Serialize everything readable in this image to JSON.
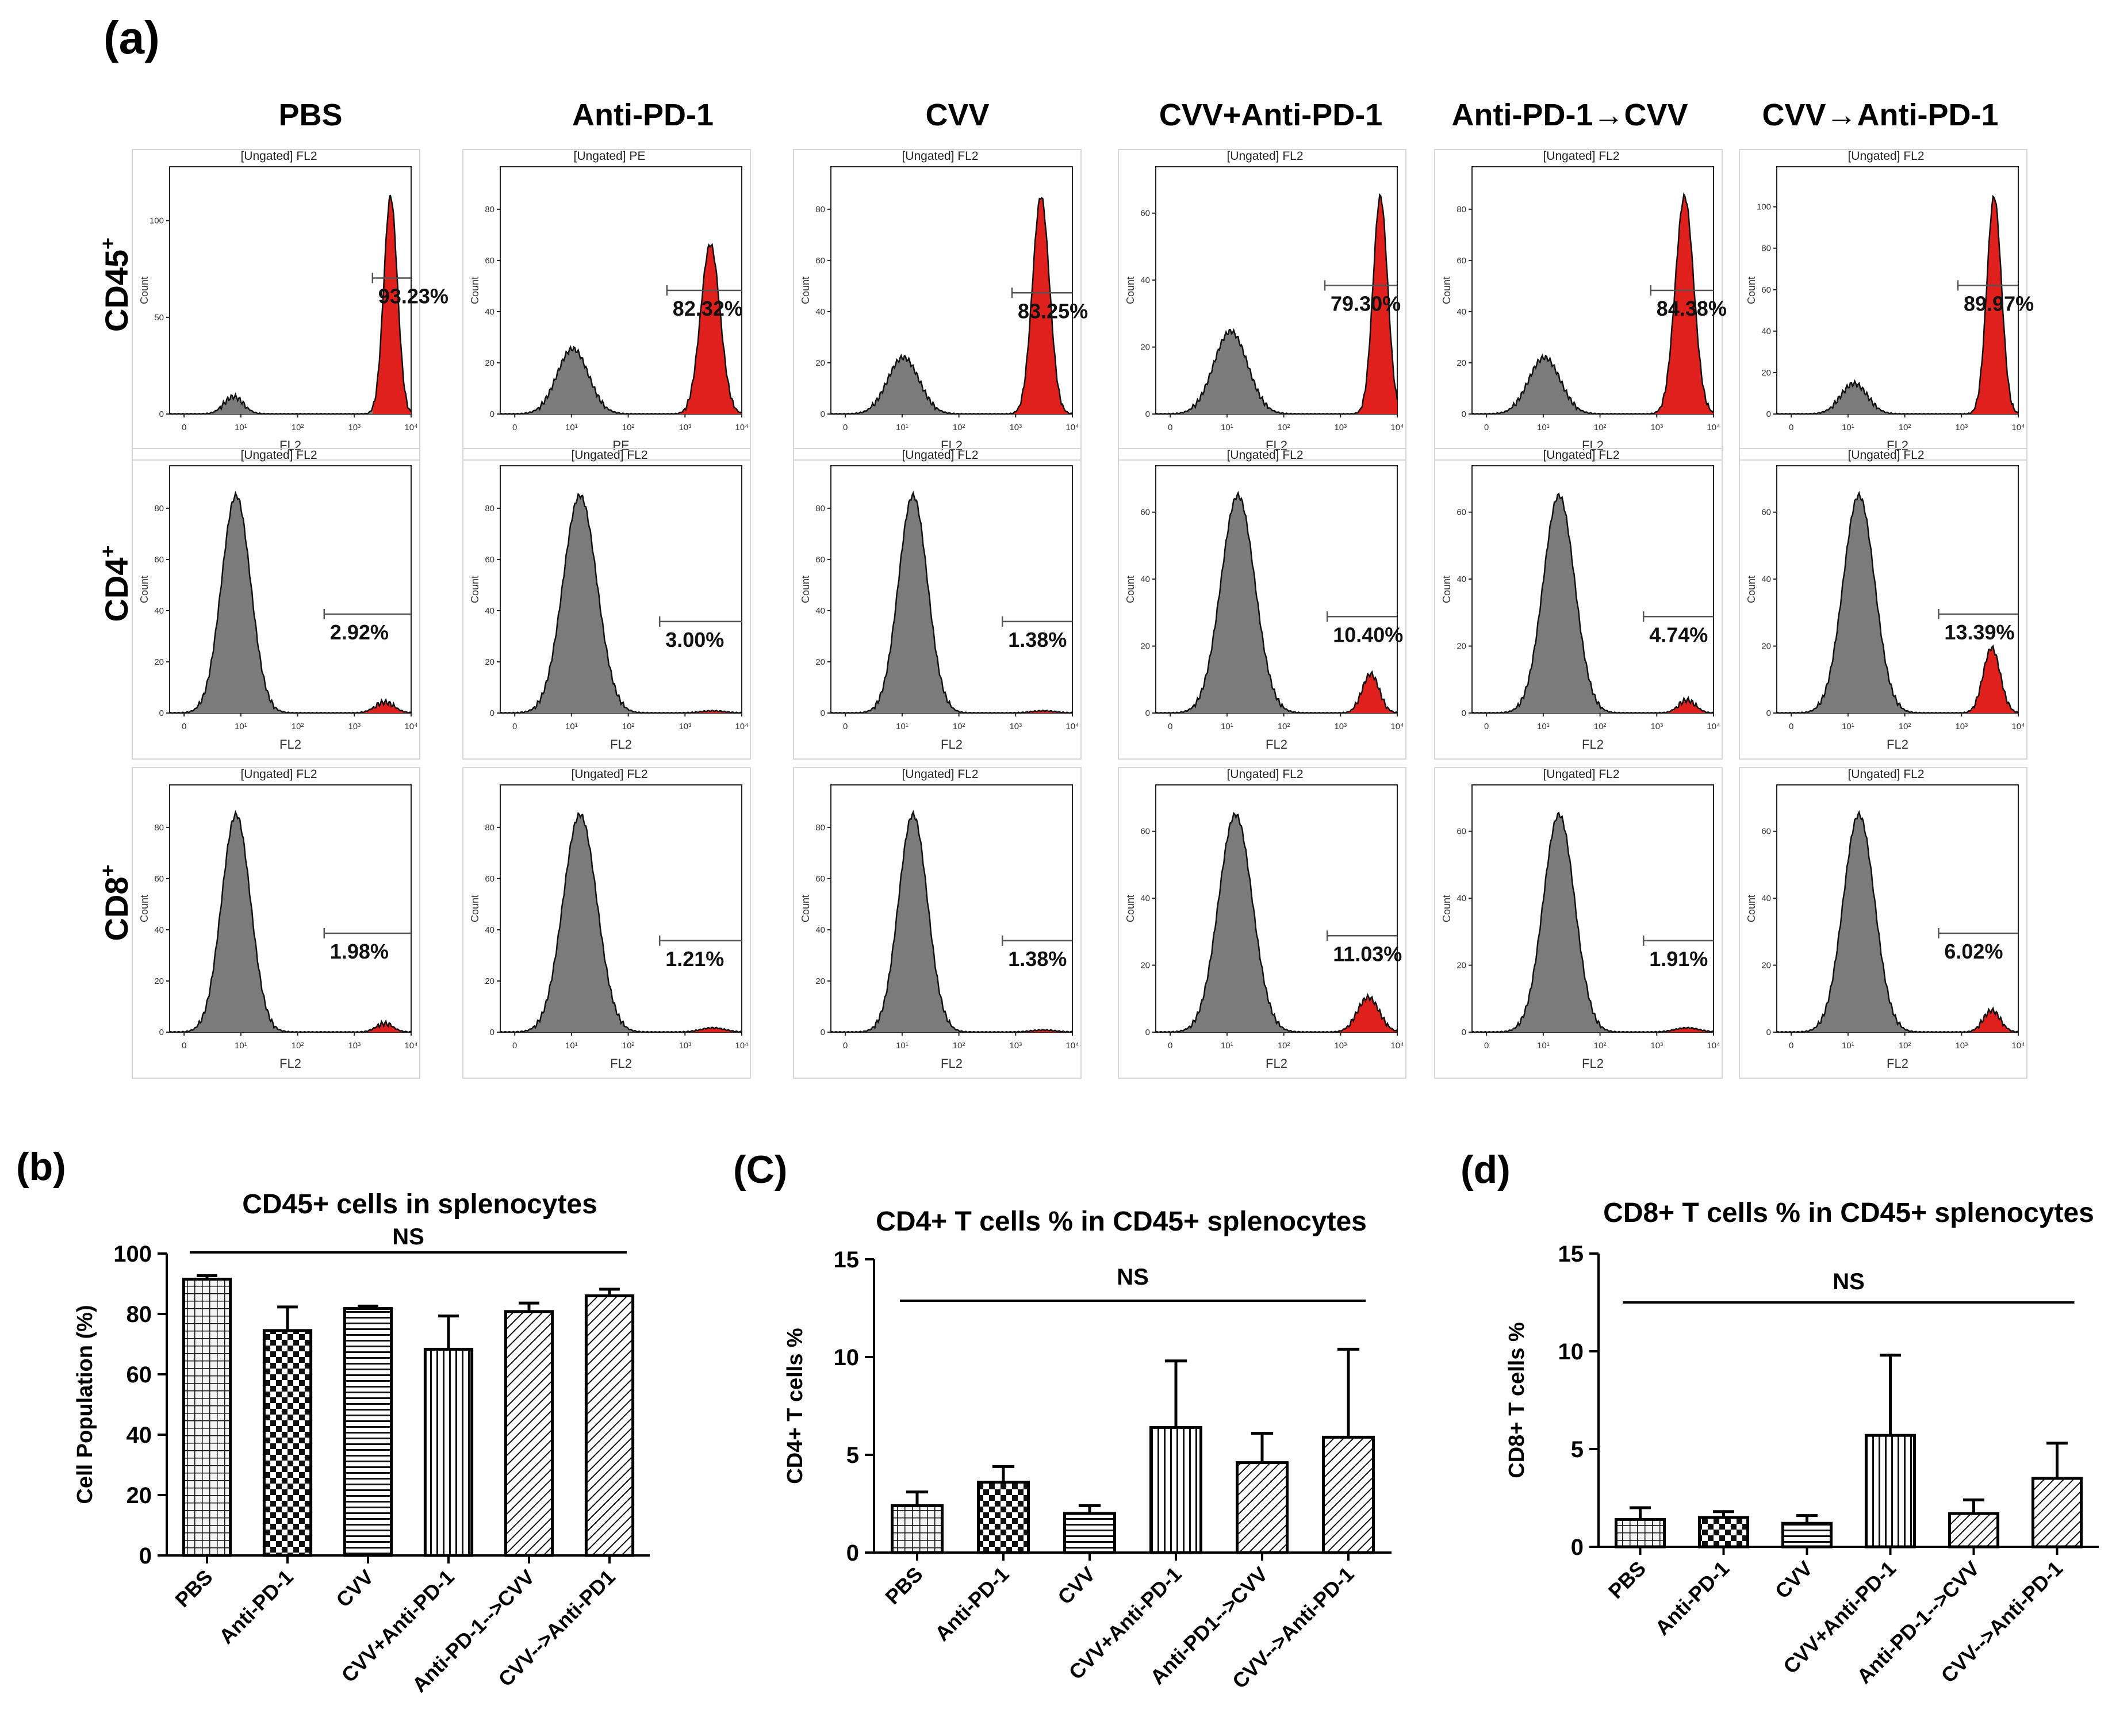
{
  "panel_a": {
    "label": "(a)",
    "columns": [
      "PBS",
      "Anti-PD-1",
      "CVV",
      "CVV+Anti-PD-1",
      "Anti-PD-1→CVV",
      "CVV→Anti-PD-1"
    ],
    "rows": [
      {
        "marker": "CD45",
        "sup": "+"
      },
      {
        "marker": "CD4",
        "sup": "+"
      },
      {
        "marker": "CD8",
        "sup": "+"
      }
    ],
    "histogram_titles": [
      [
        "[Ungated] FL2",
        "[Ungated] PE",
        "[Ungated] FL2",
        "[Ungated] FL2",
        "[Ungated] FL2",
        "[Ungated] FL2"
      ],
      [
        "[Ungated] FL2",
        "[Ungated] FL2",
        "[Ungated] FL2",
        "[Ungated] FL2",
        "[Ungated] FL2",
        "[Ungated] FL2"
      ],
      [
        "[Ungated] FL2",
        "[Ungated] FL2",
        "[Ungated] FL2",
        "[Ungated] FL2",
        "[Ungated] FL2",
        "[Ungated] FL2"
      ]
    ],
    "x_axis_labels": [
      [
        "FL2",
        "PE",
        "FL2",
        "FL2",
        "FL2",
        "FL2"
      ],
      [
        "FL2",
        "FL2",
        "FL2",
        "FL2",
        "FL2",
        "FL2"
      ],
      [
        "FL2",
        "FL2",
        "FL2",
        "FL2",
        "FL2",
        "FL2"
      ]
    ],
    "y_axis_label": "Count",
    "x_ticks": [
      "0",
      "10¹",
      "10²",
      "10³",
      "10⁴"
    ],
    "y_ticks": [
      [
        [
          "0",
          "50",
          "100"
        ],
        [
          "0",
          "20",
          "40",
          "60",
          "80"
        ],
        [
          "0",
          "20",
          "40",
          "60",
          "80"
        ],
        [
          "0",
          "20",
          "40",
          "60"
        ],
        [
          "0",
          "20",
          "40",
          "60",
          "80"
        ],
        [
          "0",
          "20",
          "40",
          "60",
          "80",
          "100"
        ]
      ],
      [
        [
          "0",
          "20",
          "40",
          "60",
          "80"
        ],
        [
          "0",
          "20",
          "40",
          "60",
          "80"
        ],
        [
          "0",
          "20",
          "40",
          "60",
          "80"
        ],
        [
          "0",
          "20",
          "40",
          "60"
        ],
        [
          "0",
          "20",
          "40",
          "60"
        ],
        [
          "0",
          "20",
          "40",
          "60"
        ]
      ],
      [
        [
          "0",
          "20",
          "40",
          "60",
          "80"
        ],
        [
          "0",
          "20",
          "40",
          "60",
          "80"
        ],
        [
          "0",
          "20",
          "40",
          "60",
          "80"
        ],
        [
          "0",
          "20",
          "40",
          "60"
        ],
        [
          "0",
          "20",
          "40",
          "60"
        ],
        [
          "0",
          "20",
          "40",
          "60"
        ]
      ]
    ],
    "gate_percentages": [
      [
        "93.23%",
        "82.32%",
        "83.25%",
        "79.30%",
        "84.38%",
        "89.97%"
      ],
      [
        "2.92%",
        "3.00%",
        "1.38%",
        "10.40%",
        "4.74%",
        "13.39%"
      ],
      [
        "1.98%",
        "1.21%",
        "1.38%",
        "11.03%",
        "1.91%",
        "6.02%"
      ]
    ],
    "colors": {
      "negative_fill": "#7b7b7b",
      "positive_fill": "#e0201c",
      "outline": "#111111"
    }
  },
  "chart_data": [
    {
      "type": "bar",
      "panel": "(b)",
      "title": "CD45+ cells in splenocytes",
      "xlabel": "",
      "ylabel": "Cell Population (%)",
      "ylim": [
        0,
        100
      ],
      "yticks": [
        0,
        20,
        40,
        60,
        80,
        100
      ],
      "categories": [
        "PBS",
        "Anti-PD-1",
        "CVV",
        "CVV+Anti-PD-1",
        "Anti-PD-1-->CVV",
        "CVV-->Anti-PD1"
      ],
      "values": [
        91.5,
        74.5,
        81.8,
        68.3,
        80.8,
        86.0
      ],
      "errors": [
        1.2,
        7.8,
        0.8,
        11.0,
        2.8,
        2.2
      ],
      "patterns": [
        "grid",
        "check",
        "hlines",
        "vlines",
        "diag",
        "diag"
      ],
      "annotation": "NS",
      "grid": false
    },
    {
      "type": "bar",
      "panel": "(C)",
      "title": "CD4+ T cells % in CD45+ splenocytes",
      "xlabel": "",
      "ylabel": "CD4+ T cells %",
      "ylim": [
        0,
        15
      ],
      "yticks": [
        0,
        5,
        10,
        15
      ],
      "categories": [
        "PBS",
        "Anti-PD-1",
        "CVV",
        "CVV+Anti-PD-1",
        "Anti-PD1-->CVV",
        "CVV-->Anti-PD-1"
      ],
      "values": [
        2.4,
        3.6,
        2.0,
        6.4,
        4.6,
        5.9
      ],
      "errors": [
        0.7,
        0.8,
        0.4,
        3.4,
        1.5,
        4.5
      ],
      "patterns": [
        "grid",
        "check",
        "hlines",
        "vlines",
        "diag",
        "diag"
      ],
      "annotation": "NS",
      "grid": false
    },
    {
      "type": "bar",
      "panel": "(d)",
      "title": "CD8+ T cells % in CD45+ splenocytes",
      "xlabel": "",
      "ylabel": "CD8+ T cells %",
      "ylim": [
        0,
        15
      ],
      "yticks": [
        0,
        5,
        10,
        15
      ],
      "categories": [
        "PBS",
        "Anti-PD-1",
        "CVV",
        "CVV+Anti-PD-1",
        "Anti-PD-1-->CVV",
        "CVV-->Anti-PD-1"
      ],
      "values": [
        1.4,
        1.5,
        1.2,
        5.7,
        1.7,
        3.5
      ],
      "errors": [
        0.6,
        0.3,
        0.4,
        4.1,
        0.7,
        1.8
      ],
      "patterns": [
        "grid",
        "check",
        "hlines",
        "vlines",
        "diag",
        "diag"
      ],
      "annotation": "NS",
      "grid": false
    }
  ]
}
